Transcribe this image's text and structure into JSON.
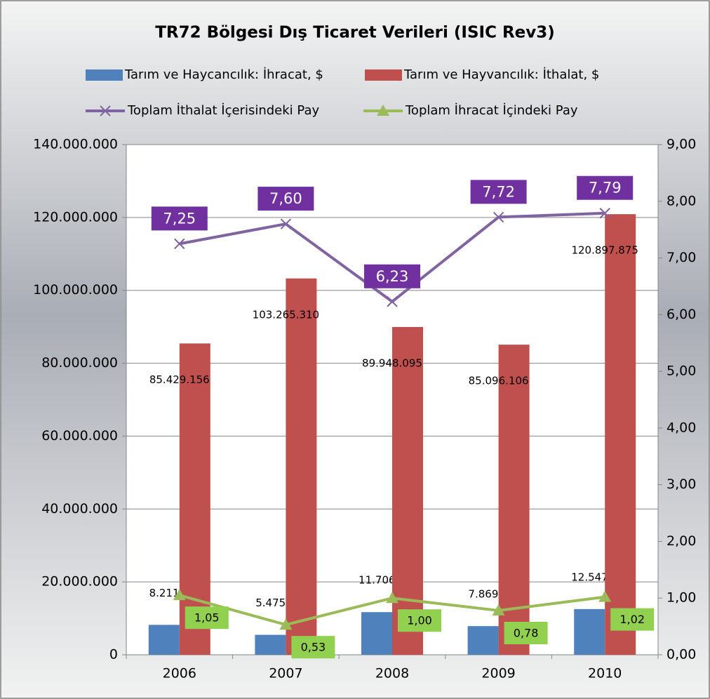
{
  "chart_data": {
    "type": "bar",
    "title": "TR72 Bölgesi Dış Ticaret Verileri (ISIC Rev3)",
    "categories": [
      "2006",
      "2007",
      "2008",
      "2009",
      "2010"
    ],
    "series": [
      {
        "name": "Tarım ve Haycancılık: İhracat, $",
        "color": "#4f81bd",
        "type": "bar",
        "values": [
          8211939,
          5475948,
          11706670,
          7869537,
          12547586
        ],
        "value_labels": [
          "8.211.939",
          "5.475.948",
          "11.706.670",
          "7.869.537",
          "12.547.586"
        ]
      },
      {
        "name": "Tarım ve Hayvancılık: İthalat, $",
        "color": "#c0504d",
        "type": "bar",
        "values": [
          85429156,
          103265310,
          89948095,
          85096106,
          120897875
        ],
        "value_labels": [
          "85.429.156",
          "103.265.310",
          "89.948.095",
          "85.096.106",
          "120.897.875"
        ]
      },
      {
        "name": "Toplam İthalat İçerisindeki Pay",
        "color": "#8064a2",
        "label_color": "#7030a0",
        "type": "line",
        "marker": "x",
        "axis": "y2",
        "values": [
          7.25,
          7.6,
          6.23,
          7.72,
          7.79
        ],
        "value_labels": [
          "7,25",
          "7,60",
          "6,23",
          "7,72",
          "7,79"
        ]
      },
      {
        "name": "Toplam İhracat İçindeki Pay",
        "color": "#9bbb59",
        "label_color": "#92d050",
        "type": "line",
        "marker": "triangle",
        "axis": "y2",
        "values": [
          1.05,
          0.53,
          1.0,
          0.78,
          1.02
        ],
        "value_labels": [
          "1,05",
          "0,53",
          "1,00",
          "0,78",
          "1,02"
        ]
      }
    ],
    "ylim": [
      0,
      140000000
    ],
    "yticks": [
      0,
      {
        "value": 20000000,
        "label": "20.000.000"
      },
      {
        "value": 40000000,
        "label": "40.000.000"
      },
      {
        "value": 60000000,
        "label": "60.000.000"
      },
      {
        "value": 80000000,
        "label": "80.000.000"
      },
      {
        "value": 100000000,
        "label": "100.000.000"
      },
      {
        "value": 120000000,
        "label": "120.000.000"
      },
      {
        "value": 140000000,
        "label": "140.000.000"
      }
    ],
    "y2lim": [
      0,
      9
    ],
    "y2ticks": [
      {
        "value": 0,
        "label": "0,00"
      },
      {
        "value": 1,
        "label": "1,00"
      },
      {
        "value": 2,
        "label": "2,00"
      },
      {
        "value": 3,
        "label": "3,00"
      },
      {
        "value": 4,
        "label": "4,00"
      },
      {
        "value": 5,
        "label": "5,00"
      },
      {
        "value": 6,
        "label": "6,00"
      },
      {
        "value": 7,
        "label": "7,00"
      },
      {
        "value": 8,
        "label": "8,00"
      },
      {
        "value": 9,
        "label": "9,00"
      }
    ],
    "grid": true,
    "legend": "top"
  }
}
